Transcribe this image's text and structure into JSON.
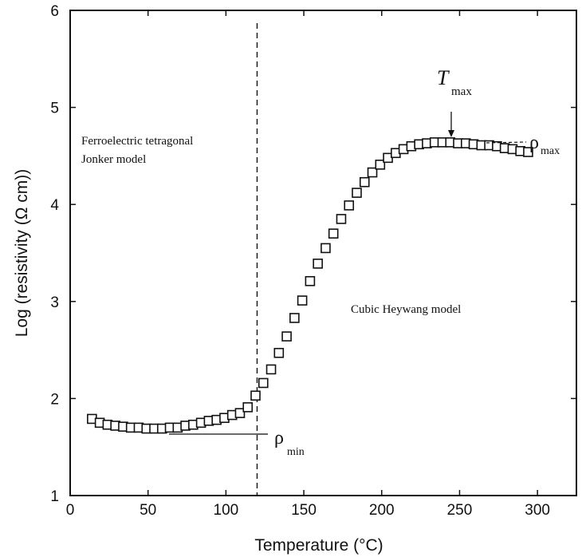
{
  "chart_data": {
    "type": "scatter",
    "xlabel": "Temperature (°C)",
    "ylabel": "Log (resistivity (Ω cm))",
    "xlim": [
      0,
      325
    ],
    "ylim": [
      1,
      6
    ],
    "xticks": [
      "0",
      "50",
      "100",
      "150",
      "200",
      "250",
      "300"
    ],
    "yticks": [
      "1",
      "2",
      "3",
      "4",
      "5",
      "6"
    ],
    "grid": false,
    "marker": "open-square",
    "x": [
      14,
      19,
      24,
      29,
      34,
      39,
      44,
      49,
      54,
      59,
      64,
      69,
      74,
      79,
      84,
      89,
      94,
      99,
      104,
      109,
      114,
      119,
      124,
      129,
      134,
      139,
      144,
      149,
      154,
      159,
      164,
      169,
      174,
      179,
      184,
      189,
      194,
      199,
      204,
      209,
      214,
      219,
      224,
      229,
      234,
      239,
      244,
      249,
      254,
      259,
      264,
      269,
      274,
      279,
      284,
      289,
      294
    ],
    "y": [
      1.79,
      1.75,
      1.73,
      1.72,
      1.71,
      1.7,
      1.7,
      1.69,
      1.69,
      1.69,
      1.7,
      1.7,
      1.72,
      1.73,
      1.75,
      1.77,
      1.78,
      1.8,
      1.83,
      1.85,
      1.91,
      2.03,
      2.16,
      2.3,
      2.47,
      2.64,
      2.83,
      3.01,
      3.21,
      3.39,
      3.55,
      3.7,
      3.85,
      3.99,
      4.12,
      4.23,
      4.33,
      4.41,
      4.48,
      4.53,
      4.57,
      4.6,
      4.62,
      4.63,
      4.64,
      4.64,
      4.64,
      4.63,
      4.63,
      4.62,
      4.61,
      4.61,
      4.6,
      4.58,
      4.57,
      4.55,
      4.54
    ],
    "annotations": {
      "tmax": {
        "prefix": "T",
        "sub": "max",
        "x": 243,
        "y": 4.64
      },
      "rho_max": {
        "prefix": "ρ",
        "sub": "max"
      },
      "rho_min": {
        "prefix": "ρ",
        "sub": "min"
      },
      "ferro_line1": "Ferroelectric tetragonal",
      "ferro_line2": "Jonker model",
      "cubic": "Cubic Heywang model",
      "dashed_line_x": 120
    }
  }
}
